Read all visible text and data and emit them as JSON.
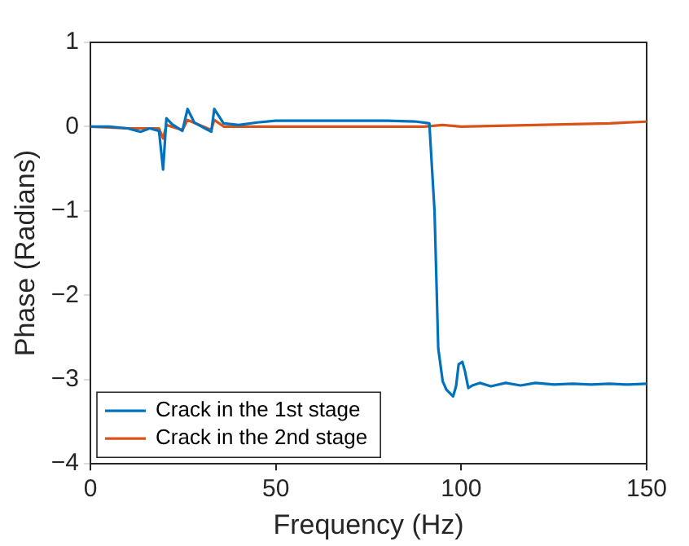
{
  "chart_data": {
    "type": "line",
    "xlabel": "Frequency (Hz)",
    "ylabel": "Phase (Radians)",
    "xlim": [
      0,
      150
    ],
    "xticks": [
      0,
      50,
      100,
      150
    ],
    "ylim": [
      -4,
      1
    ],
    "yticks": [
      -4,
      -3,
      -2,
      -1,
      0,
      1
    ],
    "grid": false,
    "legend": "bottom left",
    "marker": "none",
    "line_style": "solid",
    "series": [
      {
        "name": "Crack in the 1st stage",
        "color": "#0072bd",
        "x": [
          0,
          5,
          10,
          13.5,
          16,
          18.5,
          19.6,
          20.5,
          22,
          24.8,
          26.2,
          28,
          30,
          32.6,
          33.4,
          35.9,
          40,
          45,
          50,
          60,
          70,
          80,
          88,
          91.4,
          92.8,
          93.8,
          95,
          96,
          97.8,
          98.6,
          99.3,
          100.3,
          101,
          101.9,
          103,
          105,
          108,
          112,
          116,
          120,
          125,
          130,
          135,
          140,
          145,
          150
        ],
        "values": [
          0,
          0,
          -0.02,
          -0.06,
          -0.02,
          -0.05,
          -0.51,
          0.1,
          0.03,
          -0.05,
          0.21,
          0.05,
          0,
          -0.06,
          0.21,
          0.04,
          0.02,
          0.05,
          0.07,
          0.07,
          0.07,
          0.07,
          0.06,
          0.04,
          -1,
          -2.63,
          -3.02,
          -3.12,
          -3.2,
          -3.08,
          -2.82,
          -2.79,
          -2.9,
          -3.1,
          -3.07,
          -3.04,
          -3.08,
          -3.04,
          -3.07,
          -3.04,
          -3.06,
          -3.05,
          -3.06,
          -3.05,
          -3.06,
          -3.05
        ]
      },
      {
        "name": "Crack in the 2nd stage",
        "color": "#d95319",
        "x": [
          0,
          10,
          18.5,
          19.6,
          20.5,
          24.8,
          26.2,
          32.6,
          33.4,
          36,
          50,
          70,
          90,
          95,
          100,
          120,
          140,
          150
        ],
        "values": [
          0,
          -0.02,
          -0.02,
          -0.14,
          0.02,
          -0.04,
          0.08,
          -0.04,
          0.08,
          0,
          0,
          0,
          0,
          0.02,
          0,
          0.02,
          0.04,
          0.06
        ]
      }
    ]
  }
}
